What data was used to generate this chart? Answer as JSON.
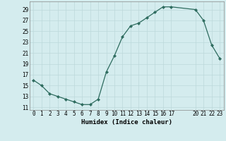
{
  "x": [
    0,
    1,
    2,
    3,
    4,
    5,
    6,
    7,
    8,
    9,
    10,
    11,
    12,
    13,
    14,
    15,
    16,
    17,
    20,
    21,
    22,
    23
  ],
  "y": [
    16,
    15,
    13.5,
    13,
    12.5,
    12,
    11.5,
    11.5,
    12.5,
    17.5,
    20.5,
    24,
    26,
    26.5,
    27.5,
    28.5,
    29.5,
    29.5,
    29,
    27,
    22.5,
    20
  ],
  "xlabel": "Humidex (Indice chaleur)",
  "xlim": [
    -0.5,
    23.5
  ],
  "ylim": [
    10.5,
    30.5
  ],
  "yticks": [
    11,
    13,
    15,
    17,
    19,
    21,
    23,
    25,
    27,
    29
  ],
  "xticks": [
    0,
    1,
    2,
    3,
    4,
    5,
    6,
    7,
    8,
    9,
    10,
    11,
    12,
    13,
    14,
    15,
    16,
    17,
    20,
    21,
    22,
    23
  ],
  "line_color": "#2d6b5e",
  "bg_color": "#d4ecee",
  "grid_color": "#bdd8da",
  "label_fontsize": 6.5,
  "tick_fontsize": 5.5
}
